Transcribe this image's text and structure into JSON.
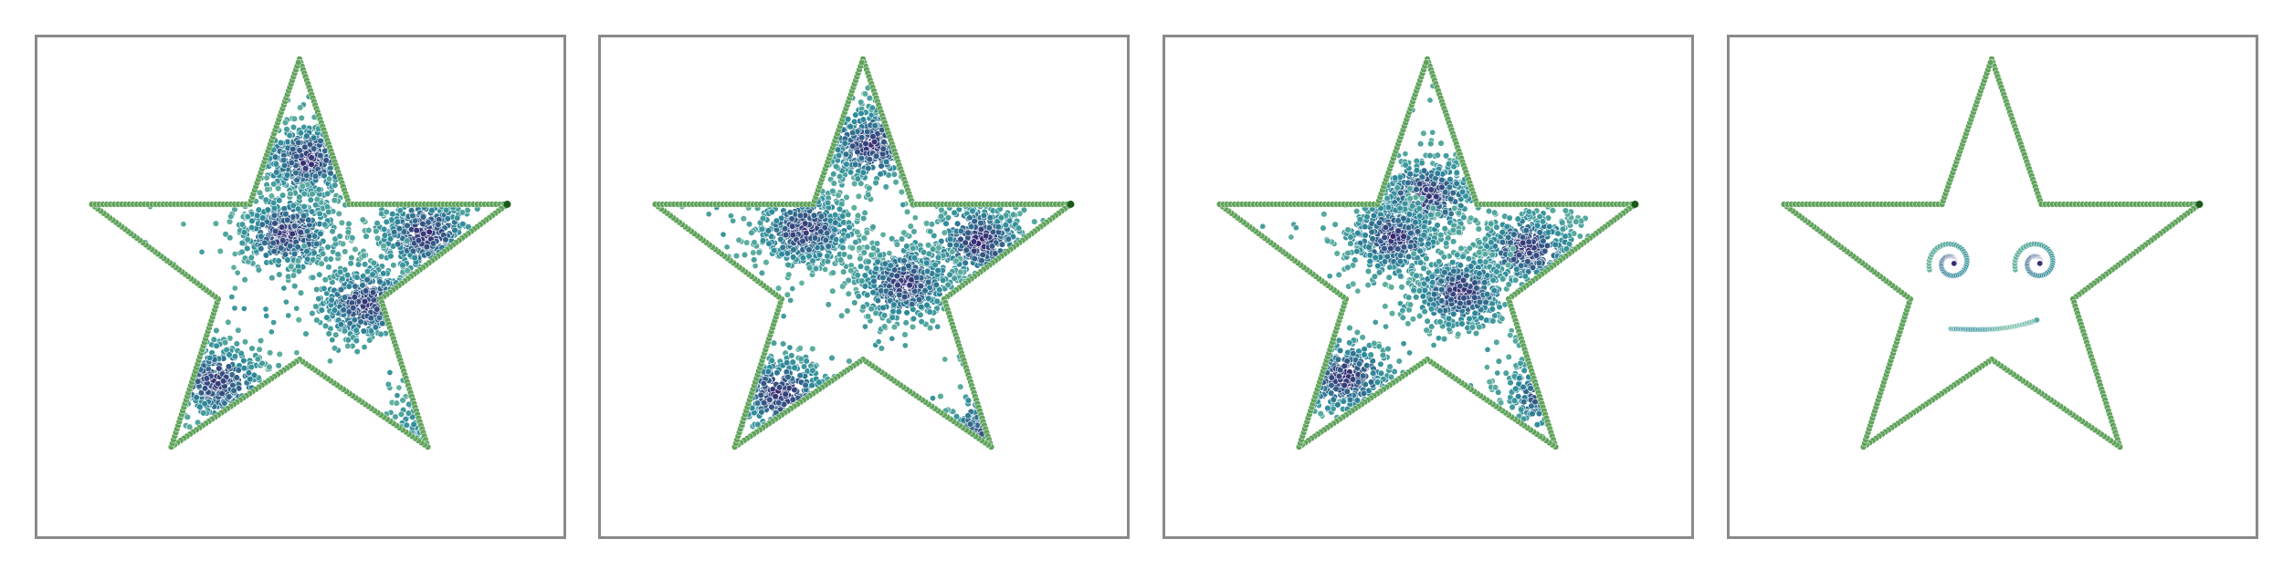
{
  "figure": {
    "panel_count": 4,
    "colors": {
      "outline": "#5fa35b",
      "outline_dark": "#1c5a1c",
      "point_light": "#7cc4a0",
      "point_mid": "#2e8c9c",
      "point_dark": "#3a1f6d",
      "frame": "#8a8a8a"
    }
  },
  "panels": [
    {
      "id": "panel-1",
      "kind": "scatter-in-star",
      "clusters": [
        {
          "u": 0.52,
          "v": 0.26,
          "density": 1.0
        },
        {
          "u": 0.47,
          "v": 0.45,
          "density": 0.9
        },
        {
          "u": 0.8,
          "v": 0.45,
          "density": 0.9
        },
        {
          "u": 0.66,
          "v": 0.63,
          "density": 1.0
        },
        {
          "u": 0.3,
          "v": 0.83,
          "density": 0.8
        },
        {
          "u": 0.86,
          "v": 0.93,
          "density": 0.9
        }
      ]
    },
    {
      "id": "panel-2",
      "kind": "scatter-in-star",
      "clusters": [
        {
          "u": 0.52,
          "v": 0.22,
          "density": 0.9
        },
        {
          "u": 0.36,
          "v": 0.44,
          "density": 1.0
        },
        {
          "u": 0.78,
          "v": 0.47,
          "density": 0.9
        },
        {
          "u": 0.6,
          "v": 0.58,
          "density": 1.0
        },
        {
          "u": 0.3,
          "v": 0.86,
          "density": 0.7
        },
        {
          "u": 0.82,
          "v": 0.95,
          "density": 0.8
        }
      ]
    },
    {
      "id": "panel-3",
      "kind": "scatter-in-star",
      "clusters": [
        {
          "u": 0.5,
          "v": 0.35,
          "density": 1.0
        },
        {
          "u": 0.42,
          "v": 0.46,
          "density": 1.0
        },
        {
          "u": 0.74,
          "v": 0.49,
          "density": 1.0
        },
        {
          "u": 0.58,
          "v": 0.6,
          "density": 1.0
        },
        {
          "u": 0.3,
          "v": 0.82,
          "density": 0.7
        },
        {
          "u": 0.8,
          "v": 0.86,
          "density": 0.7
        }
      ]
    },
    {
      "id": "panel-4",
      "kind": "smiley-star"
    }
  ]
}
